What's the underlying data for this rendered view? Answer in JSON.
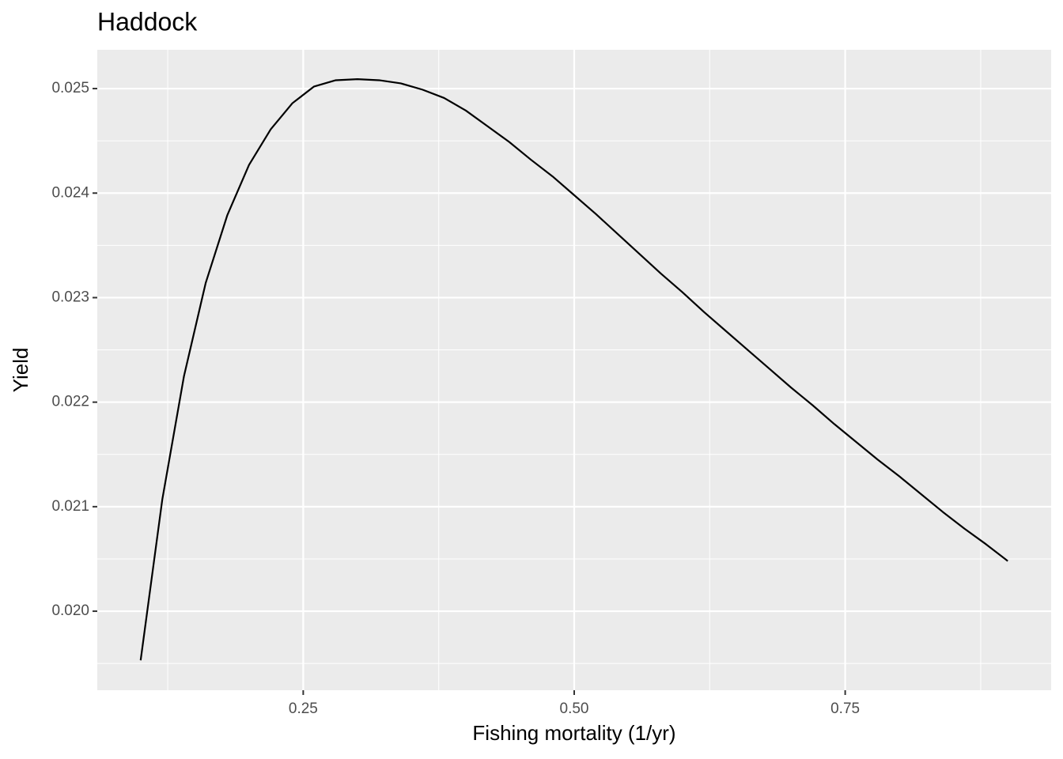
{
  "chart_data": {
    "type": "line",
    "title": "Haddock",
    "x_label": "Fishing mortality (1/yr)",
    "y_label": "Yield",
    "x": [
      0.1,
      0.12,
      0.14,
      0.16,
      0.18,
      0.2,
      0.22,
      0.24,
      0.26,
      0.28,
      0.3,
      0.32,
      0.34,
      0.36,
      0.38,
      0.4,
      0.42,
      0.44,
      0.46,
      0.48,
      0.5,
      0.52,
      0.54,
      0.56,
      0.58,
      0.6,
      0.62,
      0.64,
      0.66,
      0.68,
      0.7,
      0.72,
      0.74,
      0.76,
      0.78,
      0.8,
      0.82,
      0.84,
      0.86,
      0.88,
      0.9
    ],
    "series": [
      {
        "color": "#000000",
        "values": [
          0.01953,
          0.02107,
          0.02225,
          0.02314,
          0.02379,
          0.02427,
          0.02461,
          0.02486,
          0.02502,
          0.02508,
          0.02509,
          0.02508,
          0.02505,
          0.02499,
          0.02491,
          0.02479,
          0.02464,
          0.02449,
          0.02432,
          0.02416,
          0.02398,
          0.0238,
          0.02361,
          0.02342,
          0.02323,
          0.02305,
          0.02286,
          0.02268,
          0.0225,
          0.02232,
          0.02214,
          0.02197,
          0.02179,
          0.02162,
          0.02145,
          0.02129,
          0.02112,
          0.02095,
          0.02079,
          0.02064,
          0.02048
        ]
      }
    ],
    "xlim": [
      0.06,
      0.94
    ],
    "xticks": [
      0.25,
      {
        "value": 0.5,
        "label": "0.50"
      },
      0.75
    ],
    "ylim": [
      0.019244,
      0.025371
    ],
    "yticks": [
      {
        "value": 0.02,
        "label": "0.020"
      },
      {
        "value": 0.021,
        "label": "0.021"
      },
      {
        "value": 0.022,
        "label": "0.022"
      },
      {
        "value": 0.023,
        "label": "0.023"
      },
      {
        "value": 0.024,
        "label": "0.024"
      },
      {
        "value": 0.025,
        "label": "0.025"
      }
    ],
    "grid": true
  }
}
